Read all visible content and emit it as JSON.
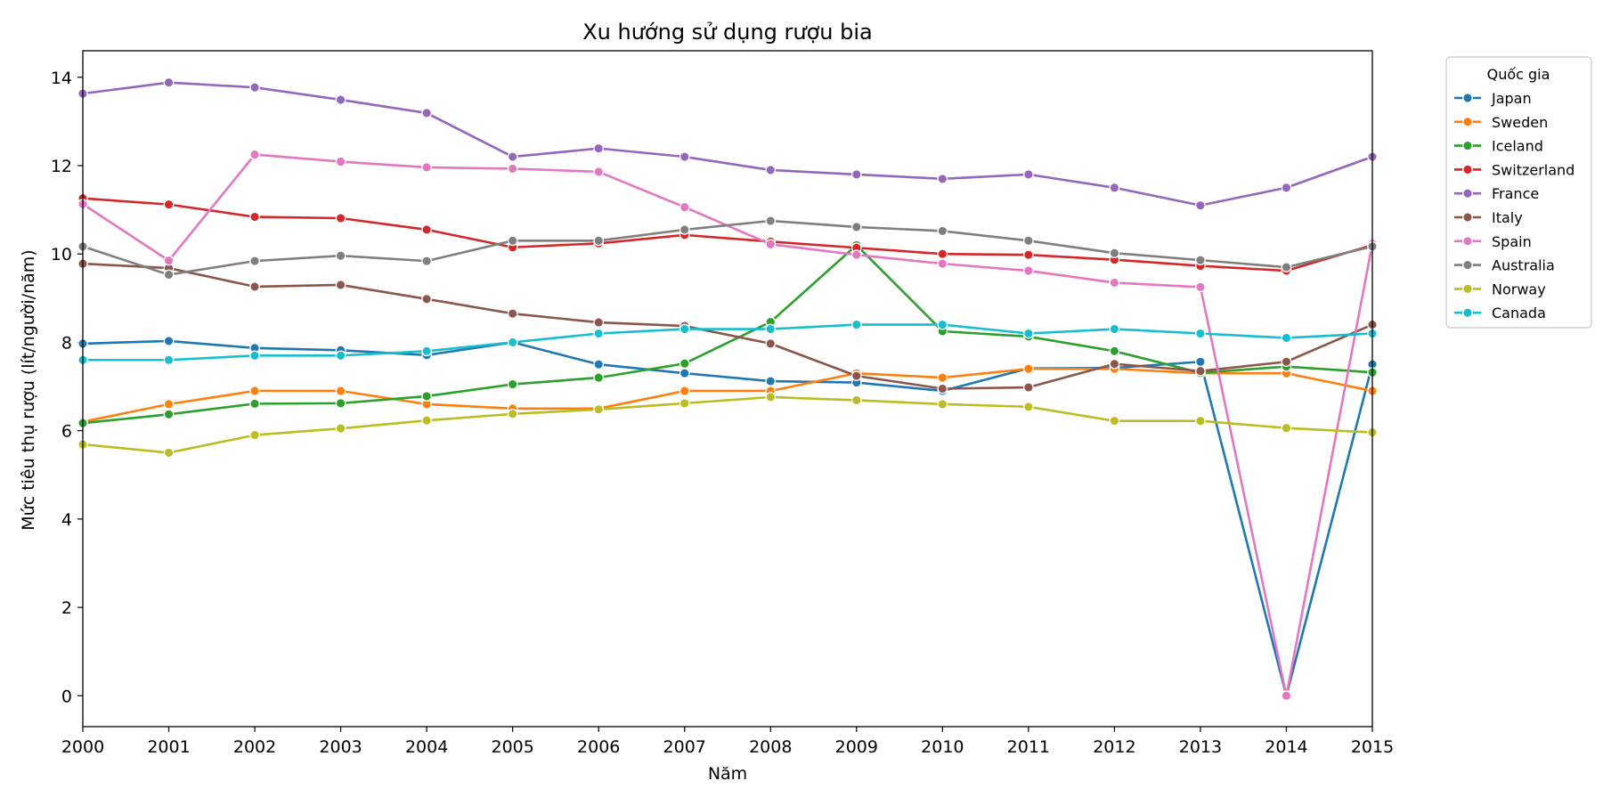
{
  "chart_data": {
    "type": "line",
    "title": "Xu hướng sử dụng rượu bia",
    "xlabel": "Năm",
    "ylabel": "Mức tiêu thụ rượu (lít/người/năm)",
    "xlim": [
      2000,
      2015
    ],
    "ylim": [
      -0.7,
      14.6
    ],
    "yticks": [
      0,
      2,
      4,
      6,
      8,
      10,
      12,
      14
    ],
    "x": [
      2000,
      2001,
      2002,
      2003,
      2004,
      2005,
      2006,
      2007,
      2008,
      2009,
      2010,
      2011,
      2012,
      2013,
      2014,
      2015
    ],
    "grid": false,
    "legend": {
      "title": "Quốc gia",
      "position": "outside-top-right"
    },
    "series": [
      {
        "name": "Japan",
        "color": "#1f77b4",
        "values": [
          7.97,
          8.03,
          7.87,
          7.82,
          7.71,
          8.0,
          7.5,
          7.3,
          7.12,
          7.09,
          6.9,
          7.41,
          7.42,
          7.56,
          0.0,
          7.5
        ]
      },
      {
        "name": "Sweden",
        "color": "#ff7f0e",
        "values": [
          6.2,
          6.6,
          6.9,
          6.9,
          6.6,
          6.5,
          6.5,
          6.9,
          6.9,
          7.3,
          7.2,
          7.4,
          7.4,
          7.3,
          7.3,
          6.9
        ]
      },
      {
        "name": "Iceland",
        "color": "#2ca02c",
        "values": [
          6.17,
          6.37,
          6.61,
          6.62,
          6.78,
          7.05,
          7.2,
          7.52,
          8.46,
          10.2,
          8.25,
          8.13,
          7.8,
          7.31,
          7.45,
          7.32
        ]
      },
      {
        "name": "Switzerland",
        "color": "#d62728",
        "values": [
          11.26,
          11.12,
          10.84,
          10.81,
          10.55,
          10.15,
          10.24,
          10.43,
          10.28,
          10.14,
          10.0,
          9.98,
          9.87,
          9.73,
          9.62,
          10.2
        ]
      },
      {
        "name": "France",
        "color": "#9467bd",
        "values": [
          13.63,
          13.88,
          13.77,
          13.49,
          13.19,
          12.2,
          12.39,
          12.2,
          11.9,
          11.8,
          11.7,
          11.8,
          11.5,
          11.1,
          11.5,
          12.2
        ]
      },
      {
        "name": "Italy",
        "color": "#8c564b",
        "values": [
          9.78,
          9.68,
          9.26,
          9.3,
          8.98,
          8.65,
          8.45,
          8.37,
          7.97,
          7.24,
          6.95,
          6.98,
          7.51,
          7.35,
          7.56,
          8.4
        ]
      },
      {
        "name": "Spain",
        "color": "#e377c2",
        "values": [
          11.13,
          9.85,
          12.25,
          12.09,
          11.96,
          11.93,
          11.86,
          11.06,
          10.22,
          9.98,
          9.78,
          9.62,
          9.35,
          9.25,
          0.0,
          10.23
        ]
      },
      {
        "name": "Australia",
        "color": "#7f7f7f",
        "values": [
          10.17,
          9.53,
          9.84,
          9.96,
          9.84,
          10.3,
          10.3,
          10.55,
          10.75,
          10.61,
          10.52,
          10.3,
          10.02,
          9.86,
          9.7,
          10.17
        ]
      },
      {
        "name": "Norway",
        "color": "#bcbd22",
        "values": [
          5.69,
          5.5,
          5.9,
          6.05,
          6.23,
          6.38,
          6.48,
          6.62,
          6.76,
          6.69,
          6.6,
          6.54,
          6.22,
          6.22,
          6.06,
          5.96
        ]
      },
      {
        "name": "Canada",
        "color": "#17becf",
        "values": [
          7.6,
          7.6,
          7.7,
          7.7,
          7.8,
          8.0,
          8.2,
          8.3,
          8.3,
          8.4,
          8.4,
          8.2,
          8.3,
          8.2,
          8.1,
          8.2
        ]
      }
    ]
  }
}
